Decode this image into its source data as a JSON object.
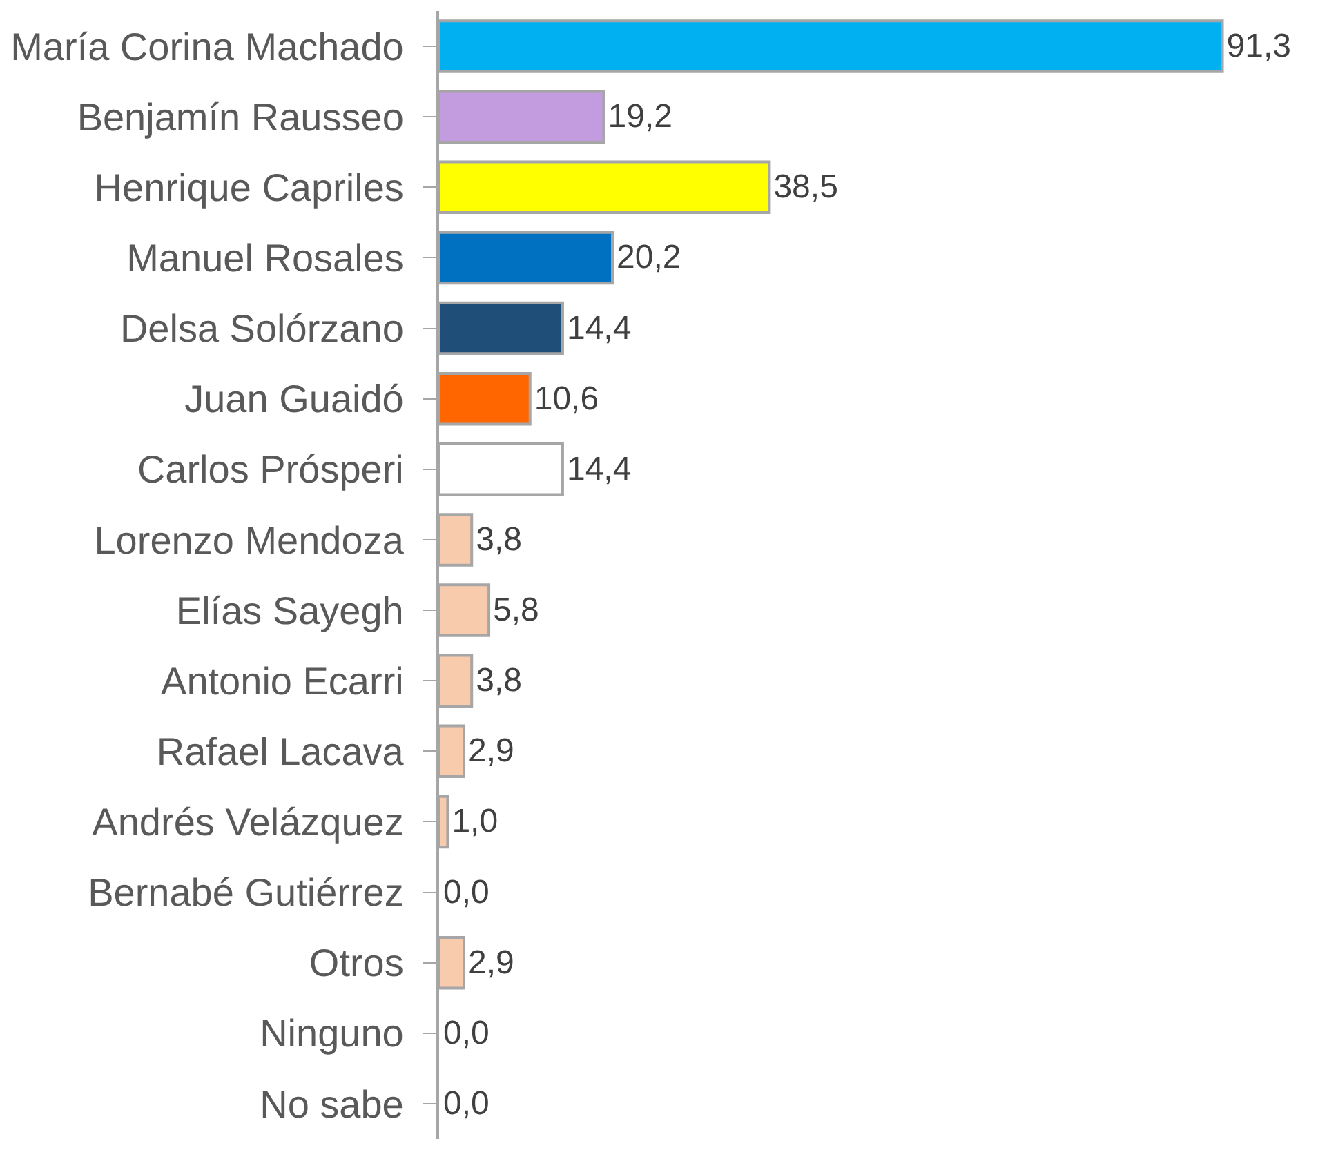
{
  "chart_data": {
    "type": "bar",
    "orientation": "horizontal",
    "categories": [
      "María Corina Machado",
      "Benjamín Rausseo",
      "Henrique Capriles",
      "Manuel Rosales",
      "Delsa Solórzano",
      "Juan Guaidó",
      "Carlos Prósperi",
      "Lorenzo Mendoza",
      "Elías Sayegh",
      "Antonio Ecarri",
      "Rafael Lacava",
      "Andrés Velázquez",
      "Bernabé Gutiérrez",
      "Otros",
      "Ninguno",
      "No sabe"
    ],
    "values": [
      91.3,
      19.2,
      38.5,
      20.2,
      14.4,
      10.6,
      14.4,
      3.8,
      5.8,
      3.8,
      2.9,
      1.0,
      0.0,
      2.9,
      0.0,
      0.0
    ],
    "value_labels": [
      "91,3",
      "19,2",
      "38,5",
      "20,2",
      "14,4",
      "10,6",
      "14,4",
      "3,8",
      "5,8",
      "3,8",
      "2,9",
      "1,0",
      "0,0",
      "2,9",
      "0,0",
      "0,0"
    ],
    "colors": [
      "#00b0f0",
      "#c39bdf",
      "#ffff00",
      "#0070c0",
      "#1f4e79",
      "#ff6600",
      "#ffffff",
      "#f8cbad",
      "#f8cbad",
      "#f8cbad",
      "#f8cbad",
      "#f8cbad",
      "#f8cbad",
      "#f8cbad",
      "#f8cbad",
      "#f8cbad"
    ],
    "legend": false
  }
}
